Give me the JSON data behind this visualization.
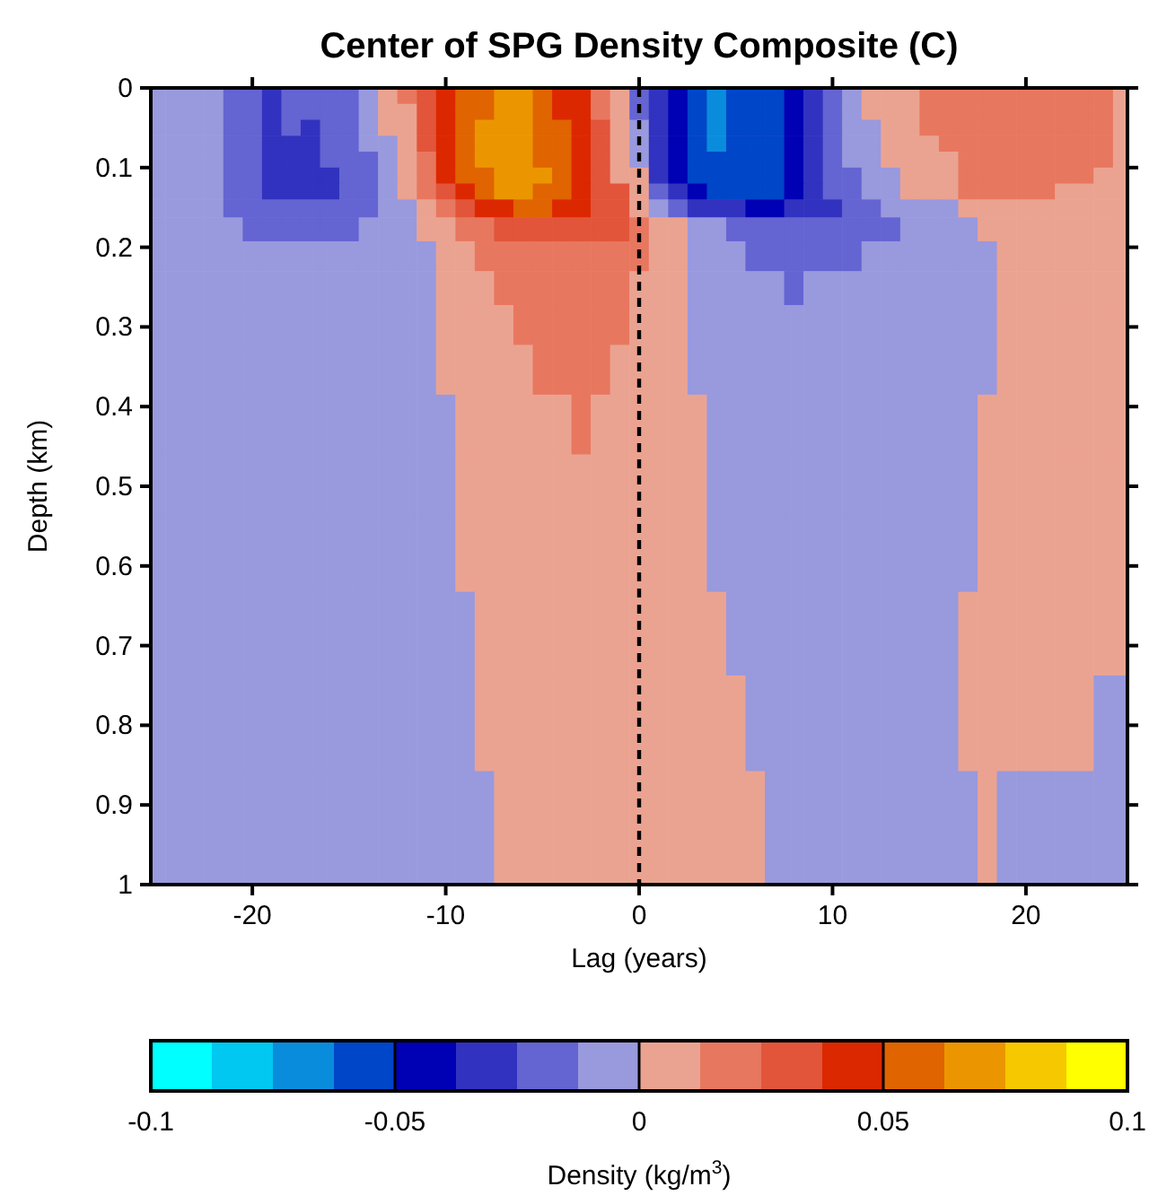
{
  "chart_data": {
    "type": "heatmap",
    "title": "Center of SPG Density Composite (C)",
    "xlabel": "Lag (years)",
    "ylabel": "Depth (km)",
    "clabel": "Density (kg/m$^{3}$)",
    "xlim": [
      -25.25,
      25.25
    ],
    "xticks": [
      -20,
      -10,
      0,
      10,
      20
    ],
    "ylim": [
      1,
      0
    ],
    "yticks": [
      0,
      0.1,
      0.2,
      0.3,
      0.4,
      0.5,
      0.6,
      0.7,
      0.8,
      0.9,
      1
    ],
    "x": [
      -25,
      -24,
      -23,
      -22,
      -21,
      -20,
      -19,
      -18,
      -17,
      -16,
      -15,
      -14,
      -13,
      -12,
      -11,
      -10,
      -9,
      -8,
      -7,
      -6,
      -5,
      -4,
      -3,
      -2,
      -1,
      0,
      1,
      2,
      3,
      4,
      5,
      6,
      7,
      8,
      9,
      10,
      11,
      12,
      13,
      14,
      15,
      16,
      17,
      18,
      19,
      20,
      21,
      22,
      23,
      24,
      25
    ],
    "y": [
      0.01,
      0.03,
      0.05,
      0.07,
      0.09,
      0.11,
      0.13,
      0.15,
      0.175,
      0.21,
      0.25,
      0.295,
      0.35,
      0.42,
      0.5,
      0.585,
      0.68,
      0.795,
      0.92
    ],
    "clim": [
      -0.1,
      0.1
    ],
    "cticks": [
      -0.1,
      -0.05,
      0,
      0.05,
      0.1
    ],
    "colors": [
      "#00ffff",
      "#00c8f0",
      "#0a8cdc",
      "#0046c8",
      "#0000b4",
      "#3232c0",
      "#6464d2",
      "#9999de",
      "#eba391",
      "#e8775f",
      "#e2553a",
      "#dc2800",
      "#e06400",
      "#eb9600",
      "#f5c800",
      "#ffff00"
    ],
    "ref_lines": [
      {
        "axis": "x",
        "value": 0,
        "color": "#000000",
        "line_style": "dashed"
      }
    ],
    "cells": [
      [
        -0.006,
        -0.006,
        -0.006,
        -0.006,
        -0.019,
        -0.019,
        -0.031,
        -0.019,
        -0.019,
        -0.019,
        -0.019,
        -0.006,
        0.006,
        0.019,
        0.031,
        0.044,
        0.056,
        0.056,
        0.069,
        0.069,
        0.056,
        0.044,
        0.044,
        0.019,
        0.006,
        -0.019,
        -0.031,
        -0.044,
        -0.056,
        -0.069,
        -0.056,
        -0.056,
        -0.056,
        -0.044,
        -0.031,
        -0.019,
        -0.006,
        0.006,
        0.006,
        0.006,
        0.019,
        0.019,
        0.019,
        0.019,
        0.019,
        0.019,
        0.019,
        0.019,
        0.019,
        0.019,
        0.006
      ],
      [
        -0.006,
        -0.006,
        -0.006,
        -0.006,
        -0.019,
        -0.019,
        -0.031,
        -0.019,
        -0.019,
        -0.019,
        -0.019,
        -0.006,
        0.006,
        0.006,
        0.031,
        0.044,
        0.056,
        0.056,
        0.069,
        0.069,
        0.056,
        0.044,
        0.044,
        0.019,
        0.006,
        -0.019,
        -0.031,
        -0.044,
        -0.056,
        -0.069,
        -0.056,
        -0.056,
        -0.056,
        -0.044,
        -0.031,
        -0.019,
        -0.006,
        0.006,
        0.006,
        0.006,
        0.019,
        0.019,
        0.019,
        0.019,
        0.019,
        0.019,
        0.019,
        0.019,
        0.019,
        0.019,
        0.006
      ],
      [
        -0.006,
        -0.006,
        -0.006,
        -0.006,
        -0.019,
        -0.019,
        -0.031,
        -0.019,
        -0.031,
        -0.019,
        -0.019,
        -0.006,
        0.006,
        0.006,
        0.031,
        0.044,
        0.056,
        0.069,
        0.069,
        0.069,
        0.056,
        0.056,
        0.044,
        0.031,
        0.006,
        -0.006,
        -0.031,
        -0.044,
        -0.056,
        -0.069,
        -0.056,
        -0.056,
        -0.056,
        -0.044,
        -0.031,
        -0.019,
        -0.006,
        -0.006,
        0.006,
        0.006,
        0.019,
        0.019,
        0.019,
        0.019,
        0.019,
        0.019,
        0.019,
        0.019,
        0.019,
        0.019,
        0.006
      ],
      [
        -0.006,
        -0.006,
        -0.006,
        -0.006,
        -0.019,
        -0.019,
        -0.031,
        -0.031,
        -0.031,
        -0.019,
        -0.019,
        -0.006,
        -0.006,
        0.006,
        0.031,
        0.044,
        0.056,
        0.069,
        0.069,
        0.069,
        0.056,
        0.056,
        0.044,
        0.031,
        0.006,
        -0.006,
        -0.031,
        -0.044,
        -0.056,
        -0.069,
        -0.056,
        -0.056,
        -0.056,
        -0.044,
        -0.031,
        -0.019,
        -0.006,
        -0.006,
        0.006,
        0.006,
        0.006,
        0.019,
        0.019,
        0.019,
        0.019,
        0.019,
        0.019,
        0.019,
        0.019,
        0.019,
        0.006
      ],
      [
        -0.006,
        -0.006,
        -0.006,
        -0.006,
        -0.019,
        -0.019,
        -0.031,
        -0.031,
        -0.031,
        -0.019,
        -0.019,
        -0.019,
        -0.006,
        0.006,
        0.019,
        0.044,
        0.056,
        0.069,
        0.069,
        0.069,
        0.056,
        0.056,
        0.044,
        0.031,
        0.006,
        -0.006,
        -0.031,
        -0.044,
        -0.056,
        -0.056,
        -0.056,
        -0.056,
        -0.056,
        -0.044,
        -0.031,
        -0.019,
        -0.006,
        -0.006,
        0.006,
        0.006,
        0.006,
        0.006,
        0.019,
        0.019,
        0.019,
        0.019,
        0.019,
        0.019,
        0.019,
        0.019,
        0.006
      ],
      [
        -0.006,
        -0.006,
        -0.006,
        -0.006,
        -0.019,
        -0.019,
        -0.031,
        -0.031,
        -0.031,
        -0.031,
        -0.019,
        -0.019,
        -0.006,
        0.006,
        0.019,
        0.044,
        0.056,
        0.056,
        0.069,
        0.069,
        0.069,
        0.056,
        0.044,
        0.031,
        0.006,
        0.006,
        -0.031,
        -0.044,
        -0.056,
        -0.056,
        -0.056,
        -0.056,
        -0.056,
        -0.044,
        -0.031,
        -0.019,
        -0.019,
        -0.006,
        -0.006,
        0.006,
        0.006,
        0.006,
        0.019,
        0.019,
        0.019,
        0.019,
        0.019,
        0.019,
        0.019,
        0.006,
        0.006
      ],
      [
        -0.006,
        -0.006,
        -0.006,
        -0.006,
        -0.019,
        -0.019,
        -0.031,
        -0.031,
        -0.031,
        -0.031,
        -0.019,
        -0.019,
        -0.006,
        0.006,
        0.019,
        0.031,
        0.044,
        0.056,
        0.069,
        0.069,
        0.056,
        0.056,
        0.044,
        0.031,
        0.031,
        0.006,
        -0.019,
        -0.031,
        -0.044,
        -0.056,
        -0.056,
        -0.056,
        -0.056,
        -0.044,
        -0.031,
        -0.019,
        -0.019,
        -0.006,
        -0.006,
        0.006,
        0.006,
        0.006,
        0.019,
        0.019,
        0.019,
        0.019,
        0.019,
        0.006,
        0.006,
        0.006,
        0.006
      ],
      [
        -0.006,
        -0.006,
        -0.006,
        -0.006,
        -0.019,
        -0.019,
        -0.019,
        -0.019,
        -0.019,
        -0.019,
        -0.019,
        -0.019,
        -0.006,
        -0.006,
        0.006,
        0.019,
        0.031,
        0.044,
        0.044,
        0.056,
        0.056,
        0.044,
        0.044,
        0.031,
        0.031,
        0.006,
        -0.006,
        -0.019,
        -0.031,
        -0.031,
        -0.031,
        -0.044,
        -0.044,
        -0.031,
        -0.031,
        -0.031,
        -0.019,
        -0.019,
        -0.006,
        -0.006,
        -0.006,
        -0.006,
        0.006,
        0.006,
        0.006,
        0.006,
        0.006,
        0.006,
        0.006,
        0.006,
        0.006
      ],
      [
        -0.006,
        -0.006,
        -0.006,
        -0.006,
        -0.006,
        -0.019,
        -0.019,
        -0.019,
        -0.019,
        -0.019,
        -0.019,
        -0.006,
        -0.006,
        -0.006,
        0.006,
        0.006,
        0.019,
        0.019,
        0.031,
        0.031,
        0.031,
        0.031,
        0.031,
        0.031,
        0.031,
        0.019,
        0.006,
        0.006,
        -0.006,
        -0.006,
        -0.019,
        -0.019,
        -0.019,
        -0.019,
        -0.019,
        -0.019,
        -0.019,
        -0.019,
        -0.019,
        -0.006,
        -0.006,
        -0.006,
        -0.006,
        0.006,
        0.006,
        0.006,
        0.006,
        0.006,
        0.006,
        0.006,
        0.006
      ],
      [
        -0.006,
        -0.006,
        -0.006,
        -0.006,
        -0.006,
        -0.006,
        -0.006,
        -0.006,
        -0.006,
        -0.006,
        -0.006,
        -0.006,
        -0.006,
        -0.006,
        -0.006,
        0.006,
        0.006,
        0.019,
        0.019,
        0.019,
        0.019,
        0.019,
        0.019,
        0.019,
        0.019,
        0.019,
        0.006,
        0.006,
        -0.006,
        -0.006,
        -0.006,
        -0.019,
        -0.019,
        -0.019,
        -0.019,
        -0.019,
        -0.019,
        -0.006,
        -0.006,
        -0.006,
        -0.006,
        -0.006,
        -0.006,
        -0.006,
        0.006,
        0.006,
        0.006,
        0.006,
        0.006,
        0.006,
        0.006
      ],
      [
        -0.006,
        -0.006,
        -0.006,
        -0.006,
        -0.006,
        -0.006,
        -0.006,
        -0.006,
        -0.006,
        -0.006,
        -0.006,
        -0.006,
        -0.006,
        -0.006,
        -0.006,
        0.006,
        0.006,
        0.006,
        0.019,
        0.019,
        0.019,
        0.019,
        0.019,
        0.019,
        0.019,
        0.006,
        0.006,
        0.006,
        -0.006,
        -0.006,
        -0.006,
        -0.006,
        -0.006,
        -0.019,
        -0.006,
        -0.006,
        -0.006,
        -0.006,
        -0.006,
        -0.006,
        -0.006,
        -0.006,
        -0.006,
        -0.006,
        0.006,
        0.006,
        0.006,
        0.006,
        0.006,
        0.006,
        0.006
      ],
      [
        -0.006,
        -0.006,
        -0.006,
        -0.006,
        -0.006,
        -0.006,
        -0.006,
        -0.006,
        -0.006,
        -0.006,
        -0.006,
        -0.006,
        -0.006,
        -0.006,
        -0.006,
        0.006,
        0.006,
        0.006,
        0.006,
        0.019,
        0.019,
        0.019,
        0.019,
        0.019,
        0.019,
        0.006,
        0.006,
        0.006,
        -0.006,
        -0.006,
        -0.006,
        -0.006,
        -0.006,
        -0.006,
        -0.006,
        -0.006,
        -0.006,
        -0.006,
        -0.006,
        -0.006,
        -0.006,
        -0.006,
        -0.006,
        -0.006,
        0.006,
        0.006,
        0.006,
        0.006,
        0.006,
        0.006,
        0.006
      ],
      [
        -0.006,
        -0.006,
        -0.006,
        -0.006,
        -0.006,
        -0.006,
        -0.006,
        -0.006,
        -0.006,
        -0.006,
        -0.006,
        -0.006,
        -0.006,
        -0.006,
        -0.006,
        0.006,
        0.006,
        0.006,
        0.006,
        0.006,
        0.019,
        0.019,
        0.019,
        0.019,
        0.006,
        0.006,
        0.006,
        0.006,
        -0.006,
        -0.006,
        -0.006,
        -0.006,
        -0.006,
        -0.006,
        -0.006,
        -0.006,
        -0.006,
        -0.006,
        -0.006,
        -0.006,
        -0.006,
        -0.006,
        -0.006,
        -0.006,
        0.006,
        0.006,
        0.006,
        0.006,
        0.006,
        0.006,
        0.006
      ],
      [
        -0.006,
        -0.006,
        -0.006,
        -0.006,
        -0.006,
        -0.006,
        -0.006,
        -0.006,
        -0.006,
        -0.006,
        -0.006,
        -0.006,
        -0.006,
        -0.006,
        -0.006,
        -0.006,
        0.006,
        0.006,
        0.006,
        0.006,
        0.006,
        0.006,
        0.019,
        0.006,
        0.006,
        0.006,
        0.006,
        0.006,
        0.006,
        -0.006,
        -0.006,
        -0.006,
        -0.006,
        -0.006,
        -0.006,
        -0.006,
        -0.006,
        -0.006,
        -0.006,
        -0.006,
        -0.006,
        -0.006,
        -0.006,
        0.006,
        0.006,
        0.006,
        0.006,
        0.006,
        0.006,
        0.006,
        0.006
      ],
      [
        -0.006,
        -0.006,
        -0.006,
        -0.006,
        -0.006,
        -0.006,
        -0.006,
        -0.006,
        -0.006,
        -0.006,
        -0.006,
        -0.006,
        -0.006,
        -0.006,
        -0.006,
        -0.006,
        0.006,
        0.006,
        0.006,
        0.006,
        0.006,
        0.006,
        0.006,
        0.006,
        0.006,
        0.006,
        0.006,
        0.006,
        0.006,
        -0.006,
        -0.006,
        -0.006,
        -0.006,
        -0.006,
        -0.006,
        -0.006,
        -0.006,
        -0.006,
        -0.006,
        -0.006,
        -0.006,
        -0.006,
        -0.006,
        0.006,
        0.006,
        0.006,
        0.006,
        0.006,
        0.006,
        0.006,
        0.006
      ],
      [
        -0.006,
        -0.006,
        -0.006,
        -0.006,
        -0.006,
        -0.006,
        -0.006,
        -0.006,
        -0.006,
        -0.006,
        -0.006,
        -0.006,
        -0.006,
        -0.006,
        -0.006,
        -0.006,
        0.006,
        0.006,
        0.006,
        0.006,
        0.006,
        0.006,
        0.006,
        0.006,
        0.006,
        0.006,
        0.006,
        0.006,
        0.006,
        -0.006,
        -0.006,
        -0.006,
        -0.006,
        -0.006,
        -0.006,
        -0.006,
        -0.006,
        -0.006,
        -0.006,
        -0.006,
        -0.006,
        -0.006,
        -0.006,
        0.006,
        0.006,
        0.006,
        0.006,
        0.006,
        0.006,
        0.006,
        0.006
      ],
      [
        -0.006,
        -0.006,
        -0.006,
        -0.006,
        -0.006,
        -0.006,
        -0.006,
        -0.006,
        -0.006,
        -0.006,
        -0.006,
        -0.006,
        -0.006,
        -0.006,
        -0.006,
        -0.006,
        -0.006,
        0.006,
        0.006,
        0.006,
        0.006,
        0.006,
        0.006,
        0.006,
        0.006,
        0.006,
        0.006,
        0.006,
        0.006,
        0.006,
        -0.006,
        -0.006,
        -0.006,
        -0.006,
        -0.006,
        -0.006,
        -0.006,
        -0.006,
        -0.006,
        -0.006,
        -0.006,
        -0.006,
        0.006,
        0.006,
        0.006,
        0.006,
        0.006,
        0.006,
        0.006,
        0.006,
        0.006
      ],
      [
        -0.006,
        -0.006,
        -0.006,
        -0.006,
        -0.006,
        -0.006,
        -0.006,
        -0.006,
        -0.006,
        -0.006,
        -0.006,
        -0.006,
        -0.006,
        -0.006,
        -0.006,
        -0.006,
        -0.006,
        0.006,
        0.006,
        0.006,
        0.006,
        0.006,
        0.006,
        0.006,
        0.006,
        0.006,
        0.006,
        0.006,
        0.006,
        0.006,
        0.006,
        -0.006,
        -0.006,
        -0.006,
        -0.006,
        -0.006,
        -0.006,
        -0.006,
        -0.006,
        -0.006,
        -0.006,
        -0.006,
        0.006,
        0.006,
        0.006,
        0.006,
        0.006,
        0.006,
        0.006,
        -0.006,
        -0.006
      ],
      [
        -0.006,
        -0.006,
        -0.006,
        -0.006,
        -0.006,
        -0.006,
        -0.006,
        -0.006,
        -0.006,
        -0.006,
        -0.006,
        -0.006,
        -0.006,
        -0.006,
        -0.006,
        -0.006,
        -0.006,
        -0.006,
        0.006,
        0.006,
        0.006,
        0.006,
        0.006,
        0.006,
        0.006,
        0.006,
        0.006,
        0.006,
        0.006,
        0.006,
        0.006,
        0.006,
        -0.006,
        -0.006,
        -0.006,
        -0.006,
        -0.006,
        -0.006,
        -0.006,
        -0.006,
        -0.006,
        -0.006,
        -0.006,
        0.006,
        -0.006,
        -0.006,
        -0.006,
        -0.006,
        -0.006,
        -0.006,
        -0.006
      ]
    ]
  }
}
